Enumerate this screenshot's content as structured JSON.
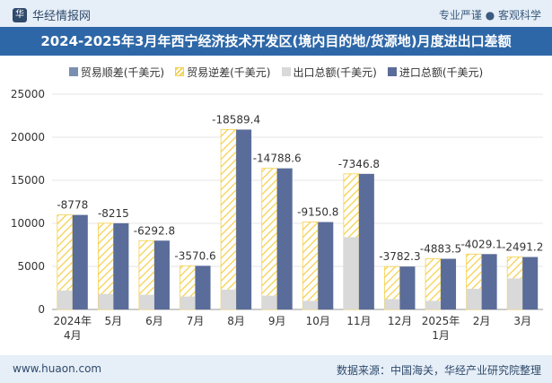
{
  "header": {
    "brand": "华经情报网",
    "tagline": "专业严谨 ● 客观科学"
  },
  "footer": {
    "website": "www.huaon.com",
    "source": "数据来源：中国海关，华经产业研究院整理"
  },
  "chart_data": {
    "type": "bar",
    "title": "2024-2025年3月年西宁经济技术开发区(境内目的地/货源地)月度进出口差额",
    "categories": [
      "2024年\n4月",
      "5月",
      "6月",
      "7月",
      "8月",
      "9月",
      "10月",
      "11月",
      "12月",
      "2025年\n1月",
      "2月",
      "3月"
    ],
    "ylim": [
      0,
      25000
    ],
    "yticks": [
      0,
      5000,
      10000,
      15000,
      20000,
      25000
    ],
    "legend": [
      "贸易顺差(千美元)",
      "贸易逆差(千美元)",
      "出口总额(千美元)",
      "进口总额(千美元)"
    ],
    "series": [
      {
        "name": "贸易顺差(千美元)",
        "values": [
          null,
          null,
          null,
          null,
          null,
          null,
          null,
          null,
          null,
          null,
          null,
          null
        ]
      },
      {
        "name": "贸易逆差(千美元)",
        "values": [
          -8778,
          -8215,
          -6292.8,
          -3570.6,
          -18589.4,
          -14788.6,
          -9150.8,
          -7346.8,
          -3782.3,
          -4883.5,
          -4029.1,
          -2491.2
        ]
      },
      {
        "name": "出口总额(千美元)",
        "values": [
          2200,
          1800,
          1700,
          1500,
          2300,
          1600,
          1000,
          8400,
          1200,
          1000,
          2400,
          3600
        ]
      },
      {
        "name": "进口总额(千美元)",
        "values": [
          10978,
          10015,
          7992.8,
          5070.6,
          20889.4,
          16388.6,
          10150.8,
          15746.8,
          4982.3,
          5883.5,
          6429.1,
          6091.2
        ]
      }
    ],
    "colors": {
      "deficit": "#f5d04b",
      "export": "#d9d9d9",
      "import": "#5a6c99",
      "grid": "#e6e6e6"
    },
    "legend_position": "top"
  }
}
